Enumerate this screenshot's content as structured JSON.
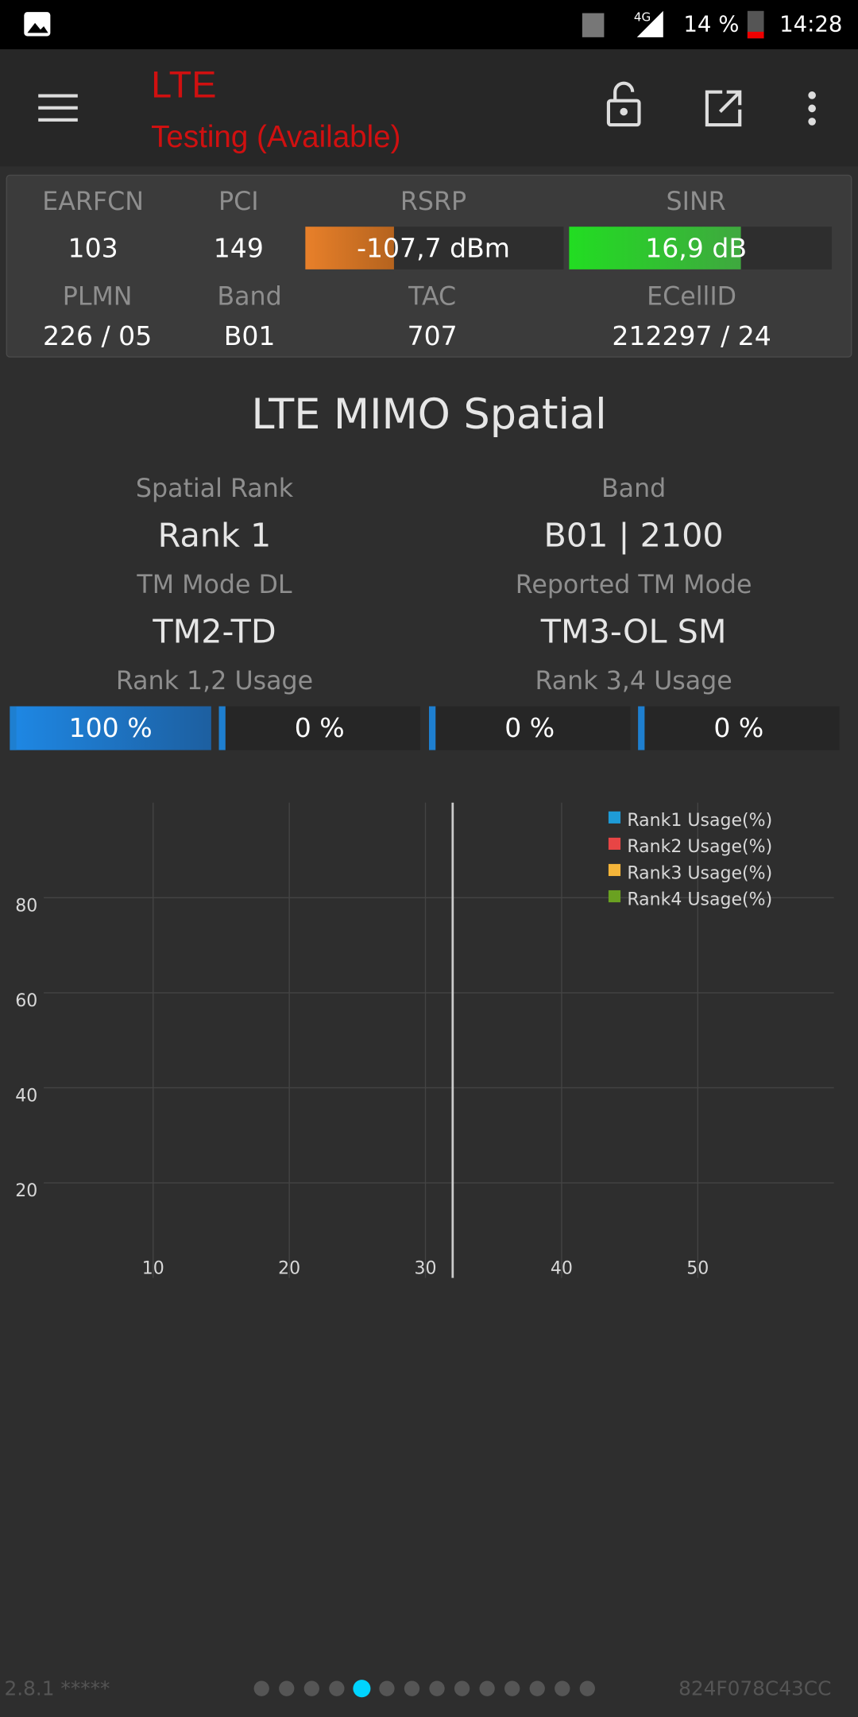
{
  "status_bar": {
    "network": "4G",
    "battery": "14 %",
    "time": "14:28"
  },
  "header": {
    "title": "LTE",
    "subtitle": "Testing (Available)"
  },
  "cell_info": {
    "row1": {
      "labels": [
        "EARFCN",
        "PCI",
        "RSRP",
        "SINR"
      ],
      "values": [
        "103",
        "149",
        "-107,7 dBm",
        "16,9 dB"
      ]
    },
    "row2": {
      "labels": [
        "PLMN",
        "Band",
        "TAC",
        "ECellID"
      ],
      "values": [
        "226 / 05",
        "B01",
        "707",
        "212297 / 24"
      ]
    }
  },
  "section": {
    "title": "LTE MIMO Spatial",
    "fields": [
      {
        "label": "Spatial Rank",
        "value": "Rank 1"
      },
      {
        "label": "Band",
        "value": "B01 | 2100"
      },
      {
        "label": "TM Mode DL",
        "value": "TM2-TD"
      },
      {
        "label": "Reported TM Mode",
        "value": "TM3-OL SM"
      }
    ],
    "usage_labels": [
      "Rank 1,2 Usage",
      "Rank 3,4 Usage"
    ],
    "usage": [
      {
        "value": 100,
        "label": "100 %"
      },
      {
        "value": 0,
        "label": "0 %"
      },
      {
        "value": 0,
        "label": "0 %"
      },
      {
        "value": 0,
        "label": "0 %"
      }
    ]
  },
  "chart": {
    "type": "line",
    "xlim": [
      0,
      60
    ],
    "ylim": [
      0,
      100
    ],
    "xticks": [
      10,
      20,
      30,
      40,
      50
    ],
    "yticks": [
      20,
      40,
      60,
      80
    ],
    "grid": true,
    "cursor_x": 32,
    "series": [
      {
        "name": "Rank1 Usage(%)",
        "color": "#1e9bd7"
      },
      {
        "name": "Rank2 Usage(%)",
        "color": "#e84545"
      },
      {
        "name": "Rank3 Usage(%)",
        "color": "#f5b53a"
      },
      {
        "name": "Rank4 Usage(%)",
        "color": "#6aa121"
      }
    ]
  },
  "footer": {
    "version": "2.8.1 *****",
    "device_id": "824F078C43CC"
  }
}
